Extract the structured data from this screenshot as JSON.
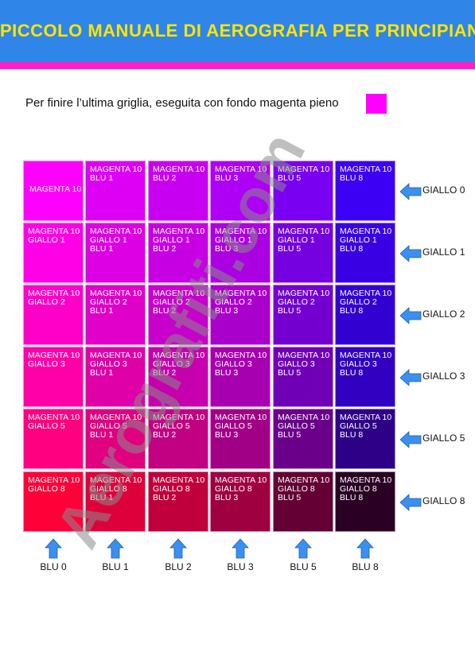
{
  "header": {
    "title": "PICCOLO MANUALE DI AEROGRAFIA PER PRINCIPIANTI"
  },
  "intro": {
    "text": "Per finire l’ultima griglia, eseguita con fondo magenta pieno"
  },
  "columns": [
    "BLU 0",
    "BLU 1",
    "BLU 2",
    "BLU 3",
    "BLU 5",
    "BLU 8"
  ],
  "rows": [
    "GIALLO 0",
    "GIALLO 1",
    "GIALLO 2",
    "GIALLO 3",
    "GIALLO 5",
    "GIALLO 8"
  ],
  "grid": [
    [
      {
        "label": "MAGENTA 10",
        "color": "#ff00ff"
      },
      {
        "label": "MAGENTA 10\nBLU 1",
        "color": "#dd00f5"
      },
      {
        "label": "MAGENTA 10\nBLU 2",
        "color": "#c800f2"
      },
      {
        "label": "MAGENTA 10\nBLU 3",
        "color": "#ad00f4"
      },
      {
        "label": "MAGENTA 10\nBLU 5",
        "color": "#7a00f2"
      },
      {
        "label": "MAGENTA 10\nBLU 8",
        "color": "#3c00f5"
      }
    ],
    [
      {
        "label": "MAGENTA 10\nGIALLO 1",
        "color": "#ff00e6"
      },
      {
        "label": "MAGENTA 10\nGIALLO 1\nBLU 1",
        "color": "#de00e4"
      },
      {
        "label": "MAGENTA 10\nGIALLO 1\nBLU 2",
        "color": "#c700e3"
      },
      {
        "label": "MAGENTA 10\nGIALLO 1\nBLU 3",
        "color": "#ab00e2"
      },
      {
        "label": "MAGENTA 10\nGIALLO 1\nBLU 5",
        "color": "#7500e0"
      },
      {
        "label": "MAGENTA 10\nGIALLO 1\nBLU 8",
        "color": "#3a00e4"
      }
    ],
    [
      {
        "label": "MAGENTA 10\nGIALLO 2",
        "color": "#ff00c8"
      },
      {
        "label": "MAGENTA 10\nGIALLO 2\nBLU 1",
        "color": "#e000c9"
      },
      {
        "label": "MAGENTA 10\nGIALLO 2\nBLU 2",
        "color": "#c700cc"
      },
      {
        "label": "MAGENTA 10\nGIALLO 2\nBLU 3",
        "color": "#a900cc"
      },
      {
        "label": "MAGENTA 10\nGIALLO 2\nBLU 5",
        "color": "#7300cf"
      },
      {
        "label": "MAGENTA 10\nGIALLO 2\nBLU 8",
        "color": "#3300d2"
      }
    ],
    [
      {
        "label": "MAGENTA 10\nGIALLO 3",
        "color": "#ff00a8"
      },
      {
        "label": "MAGENTA 10\nGIALLO 3\nBLU 1",
        "color": "#df00a8"
      },
      {
        "label": "MAGENTA 10\nGIALLO 3\nBLU 2",
        "color": "#c500ac"
      },
      {
        "label": "MAGENTA 10\nGIALLO 3\nBLU 3",
        "color": "#a700b0"
      },
      {
        "label": "MAGENTA 10\nGIALLO 3\nBLU 5",
        "color": "#7000b6"
      },
      {
        "label": "MAGENTA 10\nGIALLO 3\nBLU 8",
        "color": "#3200c0"
      }
    ],
    [
      {
        "label": "MAGENTA 10\nGIALLO 5",
        "color": "#ff0080"
      },
      {
        "label": "MAGENTA 10\nGIALLO 5\nBLU 1",
        "color": "#e00080"
      },
      {
        "label": "MAGENTA 10\nGIALLO 5\nBLU 2",
        "color": "#c20082"
      },
      {
        "label": "MAGENTA 10\nGIALLO 5\nBLU 3",
        "color": "#a10086"
      },
      {
        "label": "MAGENTA 10\nGIALLO 5\nBLU 5",
        "color": "#6a008a"
      },
      {
        "label": "MAGENTA 10\nGIALLO 5\nBLU 8",
        "color": "#2e0088"
      }
    ],
    [
      {
        "label": "MAGENTA 10\nGIALLO 8",
        "color": "#ff0038"
      },
      {
        "label": "MAGENTA 10\nGIALLO 8\nBLU 1",
        "color": "#de003a"
      },
      {
        "label": "MAGENTA 10\nGIALLO 8\nBLU 2",
        "color": "#c0003c"
      },
      {
        "label": "MAGENTA 10\nGIALLO 8\nBLU 3",
        "color": "#9e0040"
      },
      {
        "label": "MAGENTA 10\nGIALLO 8\nBLU 5",
        "color": "#640034"
      },
      {
        "label": "MAGENTA 10\nGIALLO 8\nBLU 8",
        "color": "#2a0024"
      }
    ]
  ],
  "colors": {
    "header_bg": "#2f86e8",
    "header_stripe": "#ff1ec8",
    "title": "#ffe500",
    "arrow": "#3b8ff0",
    "swatch": "#ff00ff"
  },
  "watermark": {
    "text": "Aerografiti.com"
  }
}
